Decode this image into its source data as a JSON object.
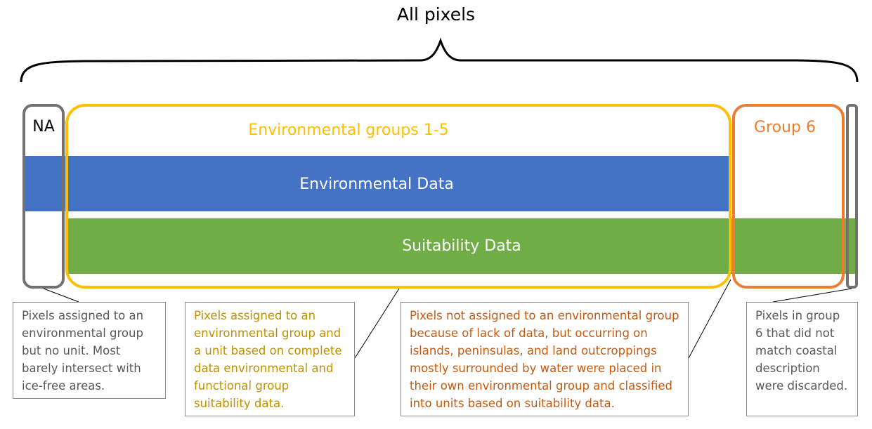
{
  "title": "All pixels",
  "bands": {
    "environmental": "Environmental Data",
    "suitability": "Suitability Data"
  },
  "groups": {
    "na": "NA",
    "env": "Environmental groups 1-5",
    "group6": "Group 6"
  },
  "notes": {
    "na": "Pixels assigned to an environmental group but no unit. Most barely intersect with ice-free areas.",
    "env": "Pixels assigned to an environmental group and a unit based on complete data environmental and functional group suitability data.",
    "group6": "Pixels not assigned to an environmental group because of lack of data, but occurring on islands, peninsulas, and land outcroppings mostly surrounded by water were placed in their own environmental group and classified into units based on suitability data.",
    "discarded": "Pixels in group 6 that did not match coastal description were discarded."
  },
  "colors": {
    "blue": "#4472c4",
    "green": "#70ad47",
    "gold": "#ffc000",
    "orange": "#ed7d31",
    "gray": "#767171",
    "text_gray": "#595959",
    "text_gold": "#bf9000",
    "text_orange": "#c55a11"
  }
}
